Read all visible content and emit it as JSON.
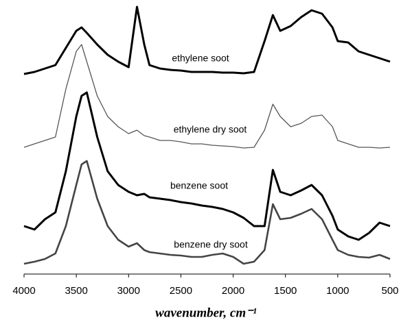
{
  "chart_data": {
    "type": "line",
    "xlabel": "wavenumber, cm⁻¹",
    "xlim": [
      4000,
      500
    ],
    "xticks": [
      4000,
      3500,
      3000,
      2500,
      2000,
      1500,
      1000,
      500
    ],
    "ylim": [
      0,
      100
    ],
    "grid": false,
    "x": [
      4000,
      3900,
      3800,
      3700,
      3600,
      3500,
      3450,
      3400,
      3300,
      3200,
      3100,
      3000,
      2920,
      2850,
      2800,
      2700,
      2600,
      2500,
      2400,
      2300,
      2200,
      2100,
      2000,
      1900,
      1800,
      1700,
      1620,
      1550,
      1450,
      1350,
      1250,
      1150,
      1050,
      1000,
      900,
      800,
      700,
      600,
      500
    ],
    "series": [
      {
        "name": "ethylene soot",
        "color": "#000000",
        "values": [
          73,
          73.75,
          75,
          76.25,
          82.5,
          88.75,
          90,
          88,
          83.75,
          80,
          77.5,
          75.5,
          97.5,
          83.75,
          76.25,
          75,
          74.5,
          74.25,
          73.75,
          73.75,
          73.75,
          73.5,
          73.5,
          73.25,
          73.75,
          85,
          94.5,
          88.75,
          90.5,
          93.75,
          96.25,
          95,
          90,
          85,
          84.5,
          81.25,
          80,
          78.75,
          77.5
        ]
      },
      {
        "name": "ethylene dry soot",
        "color": "#555555",
        "values": [
          46.25,
          47.5,
          48.75,
          50,
          67.5,
          81.25,
          83.75,
          77.5,
          65,
          57.5,
          53.75,
          51.25,
          52.5,
          50.5,
          50,
          48.75,
          48.75,
          48.25,
          47.5,
          47.5,
          47,
          46.75,
          46.5,
          46,
          46.25,
          52.5,
          62,
          57.5,
          53.75,
          55,
          57.5,
          58,
          53.75,
          48.75,
          47.5,
          46.25,
          46.25,
          46,
          46.25
        ]
      },
      {
        "name": "benzene soot",
        "color": "#000000",
        "values": [
          17.5,
          16.25,
          20,
          22.5,
          37.5,
          57.5,
          65,
          66.25,
          50,
          37.5,
          32.5,
          30,
          28.75,
          29.25,
          28,
          27.5,
          27,
          26.25,
          25.75,
          25,
          24.5,
          23.75,
          22.5,
          20.5,
          17.5,
          17.5,
          38,
          30,
          28.75,
          30.5,
          32.5,
          28.75,
          21.25,
          16.25,
          13.75,
          12.5,
          15,
          18.75,
          17.5
        ]
      },
      {
        "name": "benzene dry soot",
        "color": "#444444",
        "values": [
          3.75,
          4.5,
          5.5,
          7.5,
          17.5,
          32.5,
          40,
          41.25,
          27.5,
          17.5,
          12.5,
          10,
          11.25,
          8.75,
          8,
          7.5,
          7,
          6.75,
          6.25,
          6.25,
          7,
          7.5,
          6.25,
          3.75,
          4.5,
          8.75,
          25.5,
          20,
          20.5,
          22,
          23.75,
          20,
          12.5,
          8.75,
          7,
          6.25,
          6,
          7,
          5.5
        ]
      }
    ]
  }
}
